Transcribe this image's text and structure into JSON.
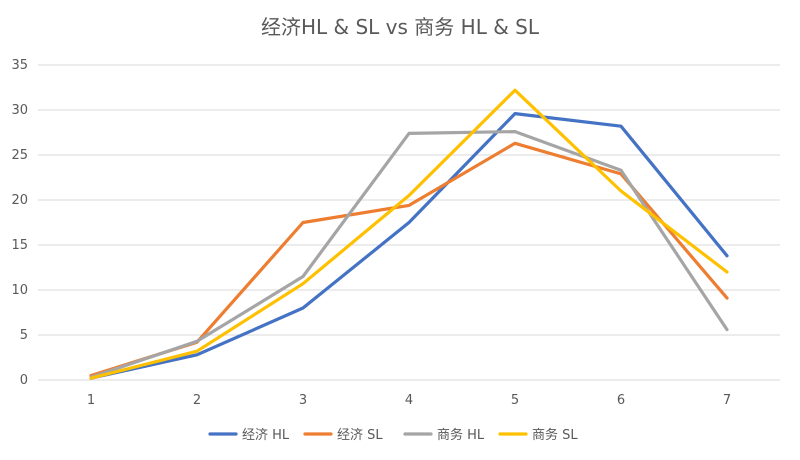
{
  "chart_data": {
    "type": "line",
    "title": "经济HL & SL vs 商务 HL & SL",
    "xlabel": "",
    "ylabel": "",
    "x": [
      1,
      2,
      3,
      4,
      5,
      6,
      7
    ],
    "ylim": [
      0,
      35
    ],
    "yticks": [
      0,
      5,
      10,
      15,
      20,
      25,
      30,
      35
    ],
    "grid": true,
    "legend_position": "bottom",
    "series": [
      {
        "name": "经济 HL",
        "color": "#4472c4",
        "values": [
          0.2,
          2.8,
          8.0,
          17.5,
          29.6,
          28.2,
          13.8
        ]
      },
      {
        "name": "经济 SL",
        "color": "#ed7d31",
        "values": [
          0.5,
          4.2,
          17.5,
          19.4,
          26.3,
          22.9,
          9.1
        ]
      },
      {
        "name": "商务 HL",
        "color": "#a5a5a5",
        "values": [
          0.3,
          4.3,
          11.5,
          27.4,
          27.6,
          23.3,
          5.6
        ]
      },
      {
        "name": "商务 SL",
        "color": "#ffc000",
        "values": [
          0.2,
          3.2,
          10.7,
          20.5,
          32.2,
          21.0,
          12.0
        ]
      }
    ]
  }
}
